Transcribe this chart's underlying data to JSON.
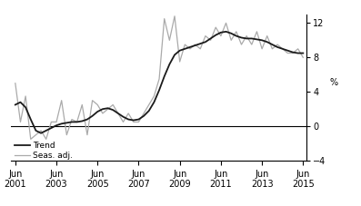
{
  "ylabel": "%",
  "ylim": [
    -4,
    13
  ],
  "yticks": [
    -4,
    0,
    4,
    8,
    12
  ],
  "xlim_start": 2001.2,
  "xlim_end": 2015.6,
  "xtick_years": [
    2001,
    2003,
    2005,
    2007,
    2009,
    2011,
    2013,
    2015
  ],
  "legend_trend": "Trend",
  "legend_seas": "Seas. adj.",
  "trend_color": "#1a1a1a",
  "seas_color": "#aaaaaa",
  "trend_linewidth": 1.3,
  "seas_linewidth": 0.9,
  "background_color": "#ffffff",
  "trend_data": [
    [
      2001.417,
      2.5
    ],
    [
      2001.667,
      2.8
    ],
    [
      2001.917,
      2.2
    ],
    [
      2002.167,
      0.8
    ],
    [
      2002.417,
      -0.5
    ],
    [
      2002.667,
      -0.8
    ],
    [
      2002.917,
      -0.5
    ],
    [
      2003.167,
      -0.2
    ],
    [
      2003.417,
      0.1
    ],
    [
      2003.667,
      0.3
    ],
    [
      2003.917,
      0.4
    ],
    [
      2004.167,
      0.5
    ],
    [
      2004.417,
      0.5
    ],
    [
      2004.667,
      0.6
    ],
    [
      2004.917,
      0.8
    ],
    [
      2005.167,
      1.2
    ],
    [
      2005.417,
      1.7
    ],
    [
      2005.667,
      2.0
    ],
    [
      2005.917,
      2.1
    ],
    [
      2006.167,
      1.9
    ],
    [
      2006.417,
      1.5
    ],
    [
      2006.667,
      1.1
    ],
    [
      2006.917,
      0.8
    ],
    [
      2007.167,
      0.7
    ],
    [
      2007.417,
      0.8
    ],
    [
      2007.667,
      1.2
    ],
    [
      2007.917,
      1.8
    ],
    [
      2008.167,
      2.8
    ],
    [
      2008.417,
      4.2
    ],
    [
      2008.667,
      5.8
    ],
    [
      2008.917,
      7.2
    ],
    [
      2009.167,
      8.3
    ],
    [
      2009.417,
      8.8
    ],
    [
      2009.667,
      9.0
    ],
    [
      2009.917,
      9.2
    ],
    [
      2010.167,
      9.4
    ],
    [
      2010.417,
      9.6
    ],
    [
      2010.667,
      9.8
    ],
    [
      2010.917,
      10.2
    ],
    [
      2011.167,
      10.6
    ],
    [
      2011.417,
      10.9
    ],
    [
      2011.667,
      11.0
    ],
    [
      2011.917,
      10.8
    ],
    [
      2012.167,
      10.5
    ],
    [
      2012.417,
      10.3
    ],
    [
      2012.667,
      10.2
    ],
    [
      2012.917,
      10.2
    ],
    [
      2013.167,
      10.1
    ],
    [
      2013.417,
      10.0
    ],
    [
      2013.667,
      9.8
    ],
    [
      2013.917,
      9.5
    ],
    [
      2014.167,
      9.2
    ],
    [
      2014.417,
      9.0
    ],
    [
      2014.667,
      8.8
    ],
    [
      2014.917,
      8.6
    ],
    [
      2015.167,
      8.5
    ],
    [
      2015.417,
      8.5
    ]
  ],
  "seas_data": [
    [
      2001.417,
      5.0
    ],
    [
      2001.667,
      0.5
    ],
    [
      2001.917,
      3.5
    ],
    [
      2002.167,
      -1.5
    ],
    [
      2002.417,
      -1.0
    ],
    [
      2002.667,
      -0.5
    ],
    [
      2002.917,
      -1.5
    ],
    [
      2003.167,
      0.5
    ],
    [
      2003.417,
      0.5
    ],
    [
      2003.667,
      3.0
    ],
    [
      2003.917,
      -1.0
    ],
    [
      2004.167,
      0.8
    ],
    [
      2004.417,
      0.5
    ],
    [
      2004.667,
      2.5
    ],
    [
      2004.917,
      -1.0
    ],
    [
      2005.167,
      3.0
    ],
    [
      2005.417,
      2.5
    ],
    [
      2005.667,
      1.5
    ],
    [
      2005.917,
      2.0
    ],
    [
      2006.167,
      2.5
    ],
    [
      2006.417,
      1.5
    ],
    [
      2006.667,
      0.5
    ],
    [
      2006.917,
      1.5
    ],
    [
      2007.167,
      0.5
    ],
    [
      2007.417,
      0.5
    ],
    [
      2007.667,
      1.5
    ],
    [
      2007.917,
      2.5
    ],
    [
      2008.167,
      3.5
    ],
    [
      2008.417,
      5.5
    ],
    [
      2008.667,
      12.5
    ],
    [
      2008.917,
      10.0
    ],
    [
      2009.167,
      12.8
    ],
    [
      2009.417,
      7.5
    ],
    [
      2009.667,
      9.5
    ],
    [
      2009.917,
      9.0
    ],
    [
      2010.167,
      9.5
    ],
    [
      2010.417,
      9.0
    ],
    [
      2010.667,
      10.5
    ],
    [
      2010.917,
      10.0
    ],
    [
      2011.167,
      11.5
    ],
    [
      2011.417,
      10.5
    ],
    [
      2011.667,
      12.0
    ],
    [
      2011.917,
      10.0
    ],
    [
      2012.167,
      11.0
    ],
    [
      2012.417,
      9.5
    ],
    [
      2012.667,
      10.5
    ],
    [
      2012.917,
      9.5
    ],
    [
      2013.167,
      11.0
    ],
    [
      2013.417,
      9.0
    ],
    [
      2013.667,
      10.5
    ],
    [
      2013.917,
      9.0
    ],
    [
      2014.167,
      9.5
    ],
    [
      2014.417,
      9.0
    ],
    [
      2014.667,
      8.5
    ],
    [
      2014.917,
      8.5
    ],
    [
      2015.167,
      9.0
    ],
    [
      2015.417,
      8.0
    ]
  ]
}
